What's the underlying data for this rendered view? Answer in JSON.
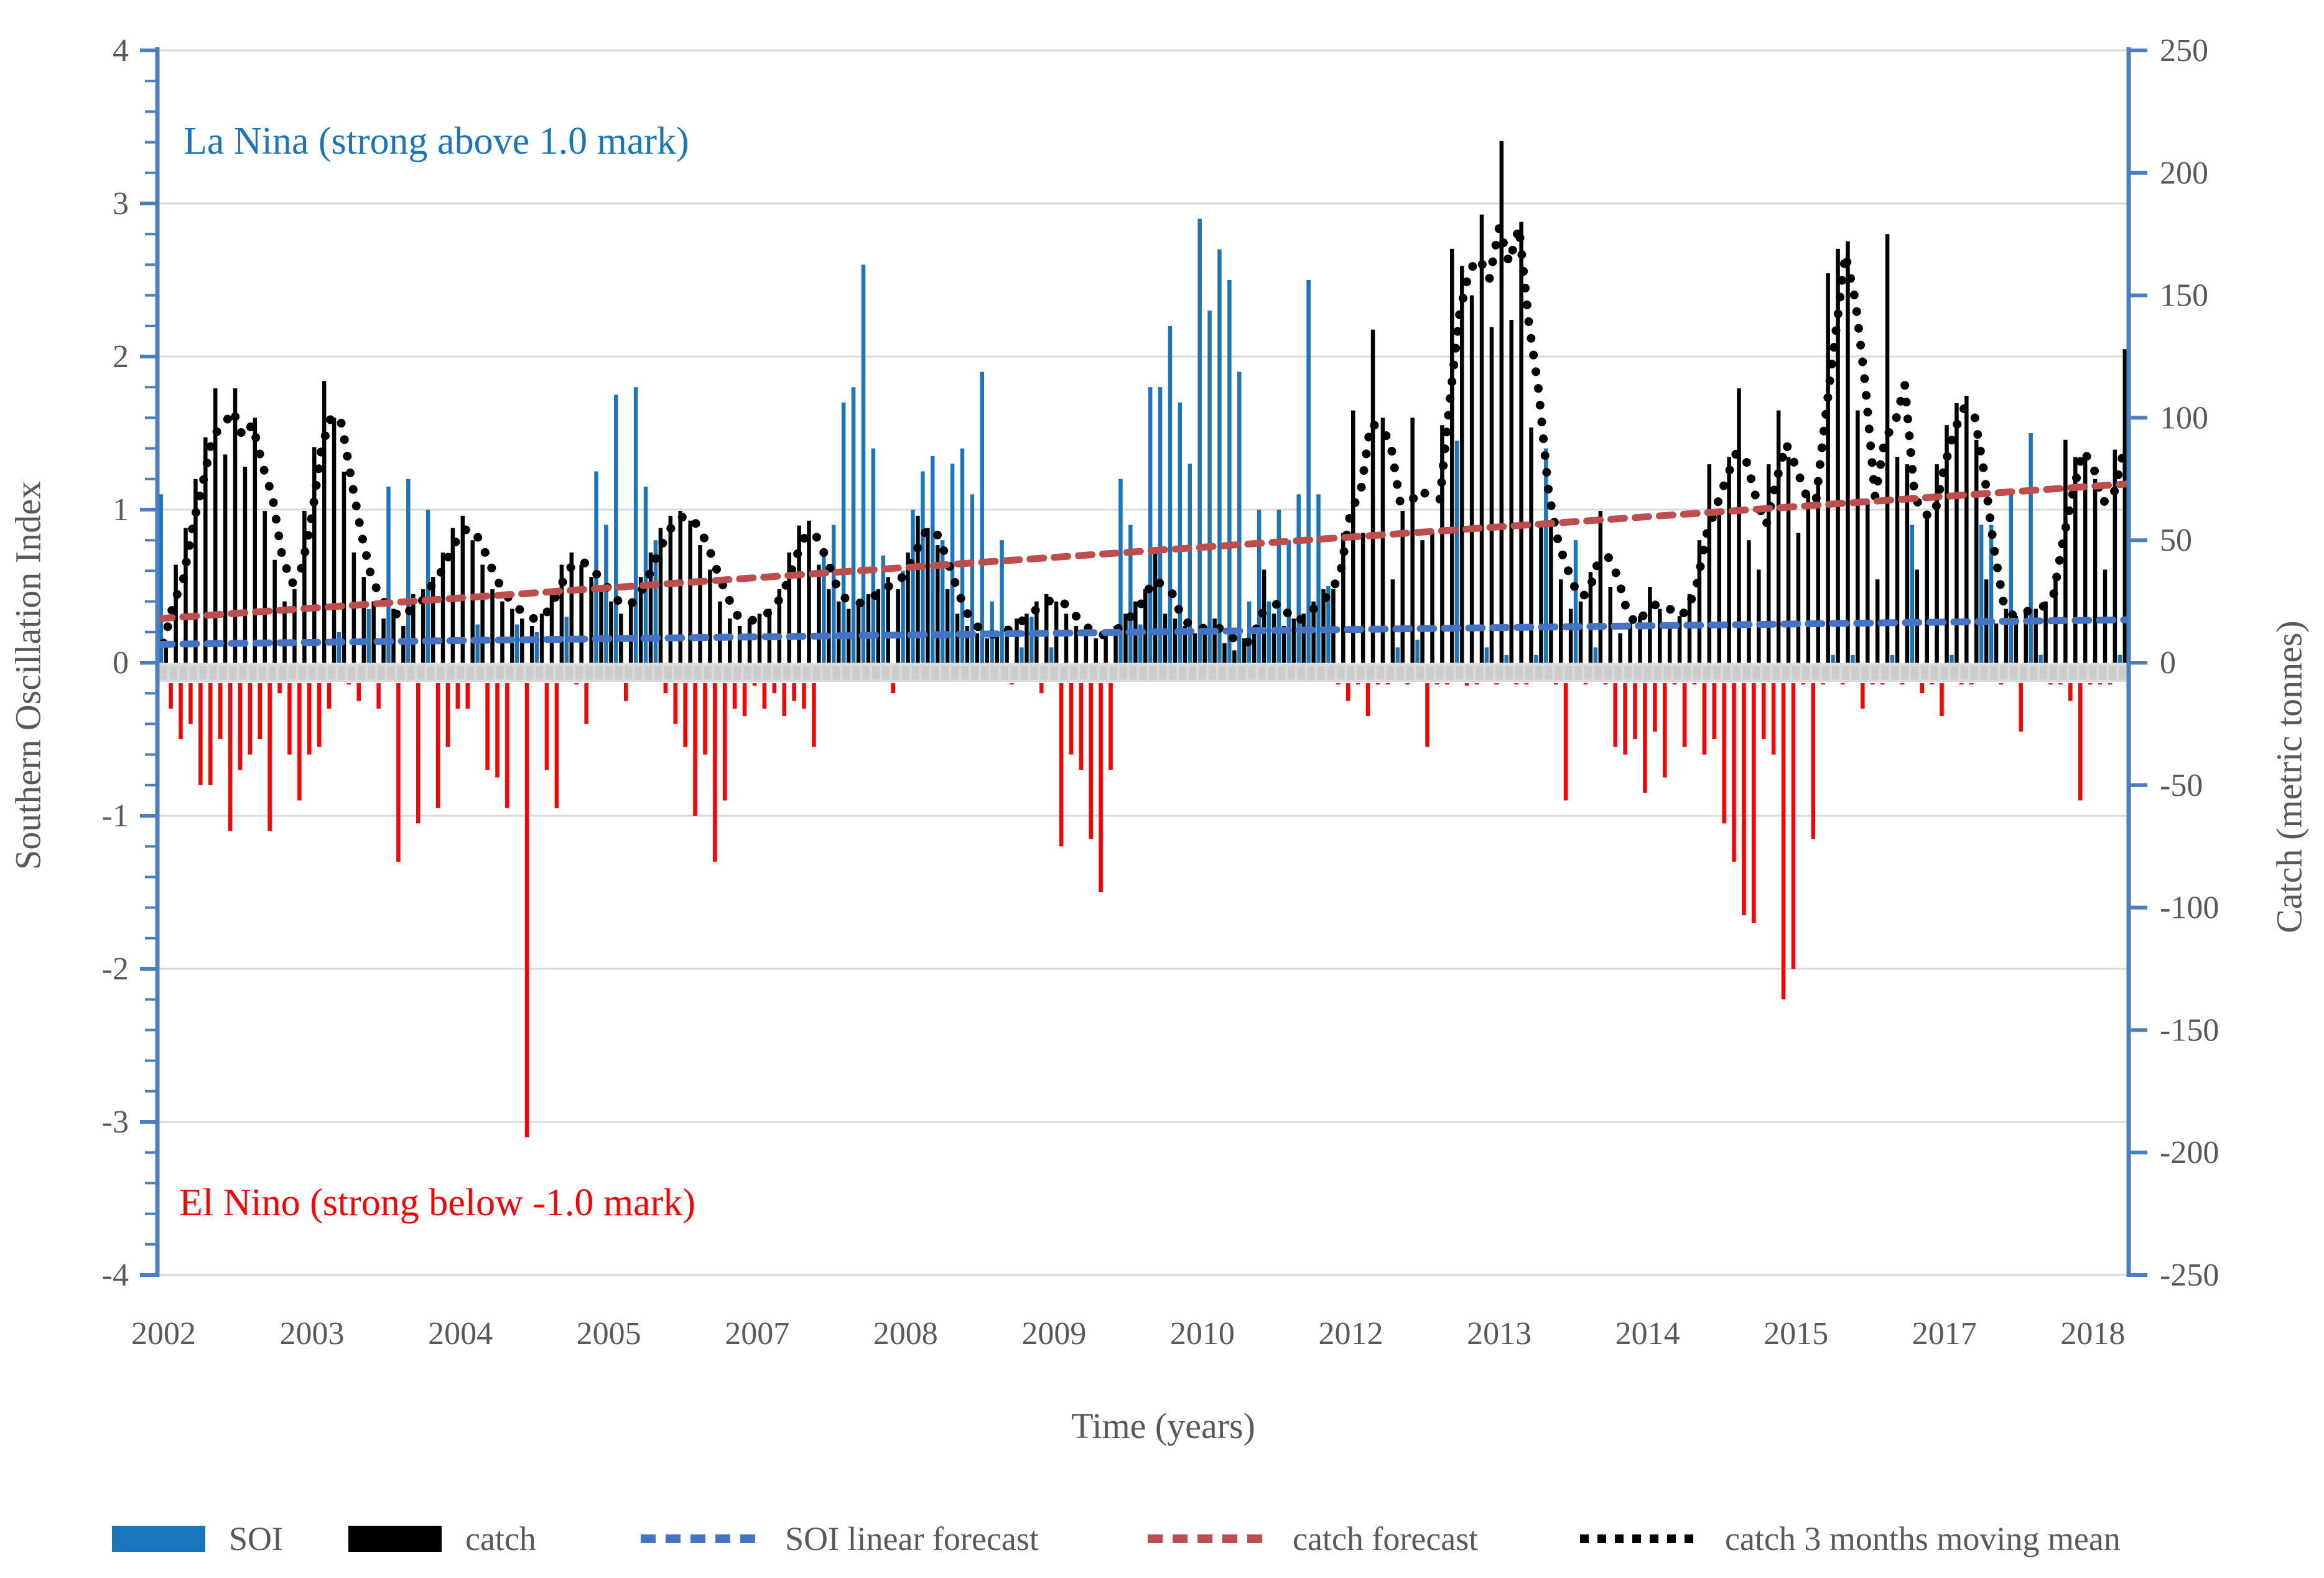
{
  "annotations": {
    "la_nina": "La Nina (strong above 1.0 mark)",
    "el_nino": "El Nino (strong below -1.0 mark)"
  },
  "axes": {
    "left": {
      "title": "Southern Oscillation Index",
      "ticks": [
        "4",
        "3",
        "2",
        "1",
        "0",
        "-1",
        "-2",
        "-3",
        "-4"
      ],
      "range": [
        -4,
        4
      ]
    },
    "right": {
      "title": "Catch (metric tonnes)",
      "ticks": [
        "250",
        "200",
        "150",
        "100",
        "50",
        "0",
        "-50",
        "-100",
        "-150",
        "-200",
        "-250"
      ],
      "range": [
        -250,
        250
      ]
    },
    "x": {
      "title": "Time (years)",
      "tick_labels": [
        "2002",
        "2003",
        "2004",
        "2005",
        "2007",
        "2008",
        "2009",
        "2010",
        "2012",
        "2013",
        "2014",
        "2015",
        "2017",
        "2018"
      ],
      "tick_month_index": [
        0,
        15,
        30,
        45,
        60,
        75,
        90,
        105,
        120,
        135,
        150,
        165,
        180,
        195
      ]
    }
  },
  "legend": {
    "items": [
      {
        "label": "SOI",
        "type": "solid",
        "color_key": "soi_blue"
      },
      {
        "label": "catch",
        "type": "solid",
        "color_key": "catch_black"
      },
      {
        "label": "SOI linear forecast",
        "type": "dash",
        "color_key": "soi_forecast_blue"
      },
      {
        "label": "catch forecast",
        "type": "dash",
        "color_key": "catch_forecast_red"
      },
      {
        "label": "catch 3 months moving mean",
        "type": "dot",
        "color_key": "catch_black"
      }
    ]
  },
  "colors": {
    "soi_blue": "#1B75BC",
    "el_nino_red": "#FF0000",
    "catch_black": "#000000",
    "soi_forecast_blue": "#4472C4",
    "catch_forecast_red": "#BE4E4E",
    "axis_blue": "#4A7EBE",
    "gridline_gray": "#D9D9D9",
    "zero_band_gray": "#DADADA",
    "tick_text_gray": "#595959"
  },
  "chart_data": {
    "type": "bar",
    "description": "Monthly data Jan 2002 - Jul 2018; SOI on left axis (-4..4), catch in metric tonnes on right axis (-250..250)",
    "x_start": "2002-01",
    "x_end": "2018-07",
    "months_per_label": 15,
    "series": [
      {
        "name": "SOI",
        "axis": "left",
        "values": [
          1.1,
          -0.3,
          -0.5,
          -0.4,
          -0.8,
          -0.8,
          -0.5,
          -1.1,
          -0.7,
          -0.6,
          -0.5,
          -1.1,
          -0.2,
          -0.6,
          -0.9,
          -0.6,
          -0.55,
          -0.3,
          0.2,
          -0.1,
          -0.25,
          0.35,
          -0.3,
          1.15,
          -1.3,
          1.2,
          -1.05,
          1.0,
          -0.95,
          -0.55,
          -0.3,
          -0.3,
          0.25,
          -0.7,
          -0.75,
          -0.95,
          0.25,
          -3.1,
          0.2,
          -0.7,
          -0.95,
          0.3,
          -0.1,
          -0.4,
          1.25,
          0.9,
          1.75,
          -0.25,
          1.8,
          1.15,
          0.8,
          -0.2,
          -0.4,
          -0.55,
          -1.0,
          -0.6,
          -1.3,
          -0.9,
          -0.3,
          -0.35,
          -0.15,
          -0.3,
          -0.2,
          -0.35,
          -0.25,
          -0.3,
          -0.55,
          0.7,
          0.9,
          1.7,
          1.8,
          2.6,
          1.4,
          0.7,
          -0.2,
          0.6,
          1.0,
          1.25,
          1.35,
          0.8,
          1.3,
          1.4,
          1.1,
          1.9,
          0.4,
          0.8,
          -0.1,
          0.1,
          0.3,
          -0.2,
          0.1,
          -1.2,
          -0.6,
          -0.7,
          -1.15,
          -1.5,
          -0.7,
          1.2,
          0.9,
          0.25,
          1.8,
          1.8,
          2.2,
          1.7,
          1.3,
          2.9,
          2.3,
          2.7,
          2.5,
          1.9,
          0.4,
          1.0,
          0.4,
          1.0,
          0.8,
          1.1,
          2.5,
          1.1,
          0.5,
          -0.1,
          -0.25,
          -0.1,
          -0.35,
          -0.05,
          -0.1,
          0.1,
          -0.05,
          0.15,
          -0.55,
          -0.05,
          -0.05,
          1.45,
          -0.15,
          -0.1,
          0.1,
          -0.05,
          0.05,
          -0.1,
          -0.05,
          0.05,
          1.4,
          -0.1,
          -0.9,
          0.8,
          -0.05,
          0.1,
          -0.1,
          -0.55,
          -0.6,
          -0.5,
          -0.85,
          -0.45,
          -0.75,
          -0.1,
          -0.55,
          -0.05,
          -0.6,
          -0.5,
          -1.05,
          -1.3,
          -1.65,
          -1.7,
          -0.5,
          -0.6,
          -2.2,
          -2.0,
          -0.1,
          -1.15,
          -0.05,
          0.05,
          -0.1,
          0.05,
          -0.3,
          -0.05,
          -0.1,
          0.05,
          -0.1,
          0.9,
          -0.2,
          -0.05,
          -0.35,
          0.05,
          -0.05,
          -0.05,
          0.9,
          0.9,
          -0.05,
          1.1,
          -0.45,
          1.5,
          0.05,
          -0.1,
          -0.05,
          -0.25,
          -0.9,
          -0.1,
          -0.05,
          -0.05,
          0.05
        ]
      },
      {
        "name": "catch",
        "axis": "right",
        "values": [
          8,
          40,
          55,
          75,
          92,
          112,
          85,
          112,
          80,
          100,
          62,
          42,
          25,
          30,
          62,
          88,
          115,
          100,
          78,
          45,
          35,
          25,
          18,
          22,
          15,
          28,
          30,
          35,
          45,
          55,
          60,
          50,
          40,
          30,
          25,
          22,
          18,
          15,
          20,
          30,
          40,
          45,
          40,
          35,
          30,
          25,
          20,
          25,
          35,
          45,
          55,
          60,
          62,
          58,
          48,
          38,
          25,
          18,
          15,
          18,
          20,
          22,
          30,
          45,
          56,
          58,
          40,
          30,
          25,
          22,
          25,
          28,
          30,
          35,
          30,
          45,
          60,
          55,
          48,
          30,
          20,
          15,
          12,
          10,
          12,
          15,
          18,
          20,
          25,
          28,
          25,
          20,
          15,
          12,
          10,
          12,
          15,
          20,
          25,
          30,
          46,
          20,
          18,
          15,
          12,
          15,
          18,
          8,
          5,
          10,
          12,
          38,
          20,
          15,
          18,
          20,
          25,
          30,
          30,
          53,
          103,
          53,
          136,
          100,
          34,
          62,
          100,
          50,
          53,
          97,
          169,
          162,
          150,
          183,
          137,
          213,
          140,
          180,
          96,
          56,
          56,
          34,
          22,
          25,
          37,
          62,
          31,
          12,
          16,
          19,
          31,
          22,
          16,
          19,
          28,
          50,
          81,
          62,
          84,
          112,
          50,
          38,
          81,
          103,
          84,
          53,
          69,
          75,
          159,
          169,
          172,
          103,
          66,
          34,
          175,
          84,
          81,
          38,
          62,
          81,
          97,
          106,
          109,
          91,
          34,
          16,
          22,
          19,
          22,
          22,
          25,
          34,
          91,
          84,
          84,
          75,
          38,
          87,
          128
        ]
      },
      {
        "name": "SOI linear forecast",
        "axis": "left",
        "trend": {
          "start": 0.12,
          "end": 0.28
        }
      },
      {
        "name": "catch forecast",
        "axis": "right",
        "trend": {
          "start": 18,
          "end": 73
        }
      },
      {
        "name": "catch 3 months moving mean",
        "axis": "right",
        "derivation": "trailing 3-month average of catch"
      }
    ]
  }
}
